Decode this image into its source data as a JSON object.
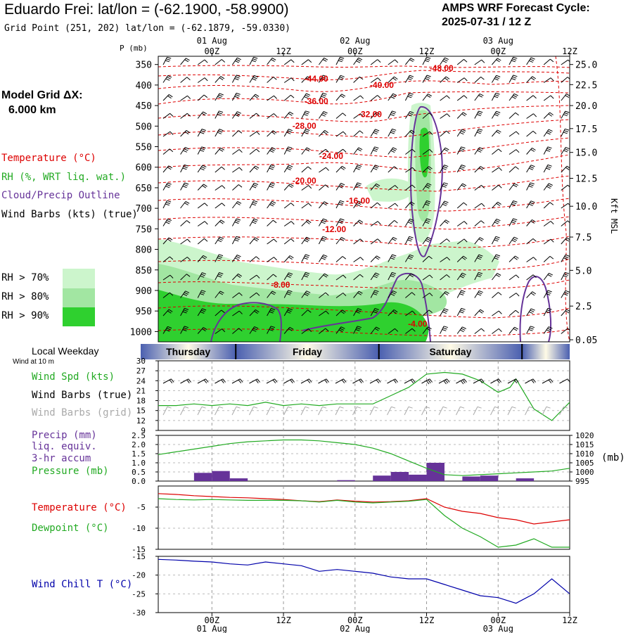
{
  "header": {
    "title": "Eduardo Frei:  lat/lon = (-62.1900, -58.9900)",
    "subtitle": "Grid Point (251, 202) lat/lon = (-62.1879, -59.0330)",
    "cycle_line1": "AMPS WRF Forecast Cycle:",
    "cycle_line2": "2025-07-31 / 12  Z",
    "grid_title": "Model Grid ΔX:",
    "grid_value": "6.000 km"
  },
  "legend": {
    "temperature": "Temperature (°C)",
    "rh": "RH (%, WRT liq. wat.)",
    "cloud": "Cloud/Precip Outline",
    "wind_barbs": "Wind Barbs (kts) (true)",
    "rh70": "RH > 70%",
    "rh80": "RH > 80%",
    "rh90": "RH > 90%",
    "weekday_title": "Local Weekday",
    "wind_note": "Wind at 10 m",
    "wind_spd": "Wind Spd (kts)",
    "wind_barbs_true": "Wind Barbs (true)",
    "wind_barbs_grid": "Wind Barbs (grid)",
    "precip1": "Precip (mm)",
    "precip2": "liq. equiv.",
    "precip3": "3-hr accum",
    "pressure": "Pressure (mb)",
    "pressure_unit": "(mb)",
    "temp2": "Temperature (°C)",
    "dewpoint": "Dewpoint (°C)",
    "windchill": "Wind Chill T (°C)",
    "p_axis": "P (mb)",
    "kft_axis": "Kft MSL"
  },
  "colors": {
    "temperature": "#dd0000",
    "rh": "#22aa22",
    "cloud": "#663399",
    "wind": "#000000",
    "wind_grid": "#aaaaaa",
    "windchill": "#0000aa",
    "rh70": "#ccf5cc",
    "rh80": "#a2e6a2",
    "rh90": "#2fd02f"
  },
  "time_axis": {
    "top_dates": [
      "01 Aug",
      "02 Aug",
      "03 Aug"
    ],
    "ticks": [
      "00Z",
      "12Z",
      "00Z",
      "12Z",
      "00Z",
      "12Z"
    ],
    "tick_hours": [
      12,
      24,
      36,
      48,
      60,
      72
    ],
    "date_hours": [
      12,
      36,
      60
    ],
    "hour_range": [
      3,
      72
    ]
  },
  "weekdays": [
    {
      "label": "Thursday",
      "start": 0,
      "end": 16
    },
    {
      "label": "Friday",
      "start": 16,
      "end": 40
    },
    {
      "label": "Saturday",
      "start": 40,
      "end": 64
    },
    {
      "label": "",
      "start": 64,
      "end": 72
    }
  ],
  "chart_data": [
    {
      "type": "heatmap",
      "name": "cross-section",
      "pressure_ticks": [
        350,
        400,
        450,
        500,
        550,
        600,
        650,
        700,
        750,
        800,
        850,
        900,
        950,
        1000
      ],
      "ylim": [
        1025,
        330
      ],
      "height_ticks": [
        {
          "label": "25.0",
          "p": 350
        },
        {
          "label": "22.5",
          "p": 399
        },
        {
          "label": "20.0",
          "p": 450
        },
        {
          "label": "17.5",
          "p": 506
        },
        {
          "label": "15.0",
          "p": 564
        },
        {
          "label": "12.5",
          "p": 627
        },
        {
          "label": "10.0",
          "p": 695
        },
        {
          "label": "7.5",
          "p": 770
        },
        {
          "label": "5.0",
          "p": 851
        },
        {
          "label": "2.5",
          "p": 938
        },
        {
          "label": "0.05",
          "p": 1020
        }
      ],
      "isotherm_labels": [
        {
          "text": "-48.00",
          "h": 50.5,
          "p": 366
        },
        {
          "text": "-44.00",
          "h": 29.5,
          "p": 392
        },
        {
          "text": "-40.00",
          "h": 40.5,
          "p": 407
        },
        {
          "text": "-36.00",
          "h": 29.5,
          "p": 446
        },
        {
          "text": "-32.00",
          "h": 38.5,
          "p": 478
        },
        {
          "text": "-28.00",
          "h": 27.5,
          "p": 506
        },
        {
          "text": "-24.00",
          "h": 32,
          "p": 580
        },
        {
          "text": "-20.00",
          "h": 27.5,
          "p": 640
        },
        {
          "text": "-16.00",
          "h": 36.5,
          "p": 689
        },
        {
          "text": "-12.00",
          "h": 32.5,
          "p": 758
        },
        {
          "text": "-8.00",
          "h": 23.5,
          "p": 893
        },
        {
          "text": "-4.00",
          "h": 46.5,
          "p": 988
        }
      ]
    },
    {
      "type": "line",
      "name": "wind",
      "ylim": [
        9,
        30
      ],
      "yticks": [
        9,
        12,
        15,
        18,
        21,
        24,
        27,
        30
      ],
      "series": [
        {
          "name": "Wind Spd (kts)",
          "x": [
            3,
            6,
            9,
            12,
            15,
            18,
            21,
            24,
            27,
            30,
            33,
            36,
            39,
            42,
            45,
            48,
            51,
            54,
            57,
            60,
            62,
            63,
            66,
            69,
            72
          ],
          "values": [
            16.5,
            16.5,
            17,
            16.5,
            17,
            16.5,
            17.5,
            16.5,
            17,
            16.5,
            17,
            17,
            17,
            19.5,
            22,
            26,
            26.5,
            26,
            24,
            20.5,
            22,
            24.5,
            15.5,
            12,
            17.5
          ]
        }
      ]
    },
    {
      "type": "bar",
      "name": "precip-pressure",
      "ylim": [
        0,
        2.5
      ],
      "yticks": [
        0.0,
        0.5,
        1.0,
        1.5,
        2.0,
        2.5
      ],
      "y2lim": [
        995,
        1020
      ],
      "y2ticks": [
        995,
        1000,
        1005,
        1010,
        1015,
        1020
      ],
      "precip": [
        {
          "h0": 9,
          "h1": 12,
          "v": 0.45
        },
        {
          "h0": 12,
          "h1": 15,
          "v": 0.55
        },
        {
          "h0": 15,
          "h1": 18,
          "v": 0.15
        },
        {
          "h0": 33,
          "h1": 36,
          "v": 0.05
        },
        {
          "h0": 39,
          "h1": 42,
          "v": 0.3
        },
        {
          "h0": 42,
          "h1": 45,
          "v": 0.5
        },
        {
          "h0": 45,
          "h1": 48,
          "v": 0.35
        },
        {
          "h0": 48,
          "h1": 51,
          "v": 1.0
        },
        {
          "h0": 54,
          "h1": 57,
          "v": 0.25
        },
        {
          "h0": 57,
          "h1": 60,
          "v": 0.3
        },
        {
          "h0": 63,
          "h1": 66,
          "v": 0.15
        }
      ],
      "pressure": {
        "x": [
          3,
          6,
          9,
          12,
          15,
          18,
          21,
          24,
          27,
          30,
          33,
          36,
          39,
          42,
          45,
          48,
          51,
          54,
          57,
          60,
          63,
          66,
          69,
          72
        ],
        "values": [
          1009.5,
          1011,
          1012.5,
          1014,
          1015.5,
          1016.5,
          1017,
          1017.5,
          1017.5,
          1017,
          1016,
          1015,
          1013,
          1010,
          1006,
          1002,
          998.5,
          998,
          998.5,
          999,
          999.5,
          1000,
          1000.5,
          1002
        ]
      }
    },
    {
      "type": "line",
      "name": "temperature",
      "ylim": [
        -15,
        0
      ],
      "yticks": [
        -5,
        -10,
        -15
      ],
      "series": [
        {
          "name": "Temperature (°C)",
          "x": [
            3,
            6,
            9,
            12,
            15,
            18,
            21,
            24,
            27,
            30,
            33,
            36,
            39,
            42,
            45,
            48,
            51,
            54,
            57,
            60,
            63,
            66,
            69,
            72
          ],
          "values": [
            -1.8,
            -2,
            -2.3,
            -2.5,
            -2.7,
            -2.8,
            -3,
            -3.2,
            -3.5,
            -3.7,
            -3.3,
            -3.6,
            -3.8,
            -3.7,
            -3.5,
            -3,
            -5,
            -6,
            -6.5,
            -7.5,
            -8,
            -9,
            -8.5,
            -8
          ]
        },
        {
          "name": "Dewpoint (°C)",
          "x": [
            3,
            6,
            9,
            12,
            15,
            18,
            21,
            24,
            27,
            30,
            33,
            36,
            39,
            42,
            45,
            48,
            51,
            54,
            57,
            60,
            63,
            66,
            69,
            72
          ],
          "values": [
            -3,
            -3.2,
            -3.3,
            -3.2,
            -3.3,
            -3.4,
            -3.4,
            -3.4,
            -3.5,
            -3.8,
            -3.4,
            -3.8,
            -4,
            -3.8,
            -3.6,
            -3.2,
            -7,
            -10,
            -12,
            -14.5,
            -14,
            -12.5,
            -14.5,
            -14.5
          ]
        }
      ]
    },
    {
      "type": "line",
      "name": "windchill",
      "ylim": [
        -30,
        -15
      ],
      "yticks": [
        -15,
        -20,
        -25,
        -30
      ],
      "series": [
        {
          "name": "Wind Chill T (°C)",
          "x": [
            3,
            6,
            9,
            12,
            15,
            18,
            21,
            24,
            27,
            30,
            33,
            36,
            39,
            42,
            45,
            48,
            51,
            54,
            57,
            60,
            63,
            66,
            69,
            72
          ],
          "values": [
            -15.8,
            -16,
            -16.3,
            -16.5,
            -17,
            -17.3,
            -16.5,
            -17,
            -17.5,
            -19,
            -18.5,
            -19,
            -19.5,
            -20.5,
            -21,
            -21,
            -22.5,
            -24,
            -25.5,
            -26,
            -27.5,
            -25,
            -21,
            -25
          ]
        }
      ]
    }
  ]
}
